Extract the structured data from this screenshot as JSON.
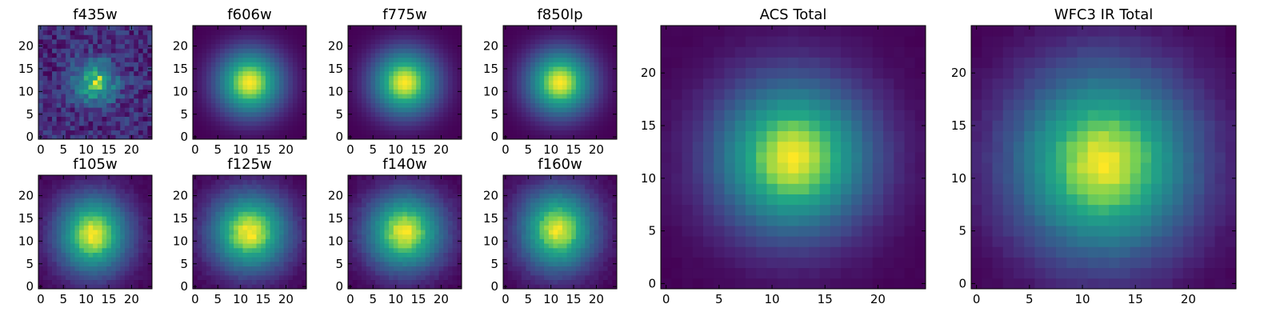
{
  "chart_data": {
    "type": "heatmap",
    "grid_size": 25,
    "colormap": "viridis",
    "panels": [
      {
        "id": "f435w",
        "title": "f435w",
        "center": [
          12,
          12
        ],
        "sigma": [
          2.6,
          2.6
        ],
        "noise": 0.42,
        "xticks": [
          0,
          5,
          10,
          15,
          20
        ],
        "yticks": [
          0,
          5,
          10,
          15,
          20
        ]
      },
      {
        "id": "f606w",
        "title": "f606w",
        "center": [
          12,
          12
        ],
        "sigma": [
          4.2,
          4.2
        ],
        "noise": 0.0,
        "xticks": [
          0,
          5,
          10,
          15,
          20
        ],
        "yticks": [
          0,
          5,
          10,
          15,
          20
        ]
      },
      {
        "id": "f775w",
        "title": "f775w",
        "center": [
          12,
          12
        ],
        "sigma": [
          4.2,
          4.2
        ],
        "noise": 0.0,
        "xticks": [
          0,
          5,
          10,
          15,
          20
        ],
        "yticks": [
          0,
          5,
          10,
          15,
          20
        ]
      },
      {
        "id": "f850lp",
        "title": "f850lp",
        "center": [
          12,
          12
        ],
        "sigma": [
          4.2,
          4.2
        ],
        "noise": 0.0,
        "xticks": [
          0,
          5,
          10,
          15,
          20
        ],
        "yticks": [
          0,
          5,
          10,
          15,
          20
        ]
      },
      {
        "id": "f105w",
        "title": "f105w",
        "center": [
          11.5,
          11.5
        ],
        "sigma": [
          4.6,
          5.0
        ],
        "noise": 0.05,
        "xticks": [
          0,
          5,
          10,
          15,
          20
        ],
        "yticks": [
          0,
          5,
          10,
          15,
          20
        ]
      },
      {
        "id": "f125w",
        "title": "f125w",
        "center": [
          12,
          12
        ],
        "sigma": [
          5.0,
          5.0
        ],
        "noise": 0.05,
        "xticks": [
          0,
          5,
          10,
          15,
          20
        ],
        "yticks": [
          0,
          5,
          10,
          15,
          20
        ]
      },
      {
        "id": "f140w",
        "title": "f140w",
        "center": [
          12,
          12
        ],
        "sigma": [
          5.0,
          5.0
        ],
        "noise": 0.05,
        "xticks": [
          0,
          5,
          10,
          15,
          20
        ],
        "yticks": [
          0,
          5,
          10,
          15,
          20
        ]
      },
      {
        "id": "f160w",
        "title": "f160w",
        "center": [
          11.5,
          12.5
        ],
        "sigma": [
          4.8,
          5.2
        ],
        "noise": 0.05,
        "xticks": [
          0,
          5,
          10,
          15,
          20
        ],
        "yticks": [
          0,
          5,
          10,
          15,
          20
        ]
      },
      {
        "id": "acs_total",
        "title": "ACS Total",
        "center": [
          12,
          12
        ],
        "sigma": [
          4.2,
          4.2
        ],
        "noise": 0.02,
        "xticks": [
          0,
          5,
          10,
          15,
          20
        ],
        "yticks": [
          0,
          5,
          10,
          15,
          20
        ]
      },
      {
        "id": "wfc3ir_total",
        "title": "WFC3 IR Total",
        "center": [
          12,
          11.5
        ],
        "sigma": [
          5.0,
          5.2
        ],
        "noise": 0.03,
        "xticks": [
          0,
          5,
          10,
          15,
          20
        ],
        "yticks": [
          0,
          5,
          10,
          15,
          20
        ]
      }
    ]
  }
}
